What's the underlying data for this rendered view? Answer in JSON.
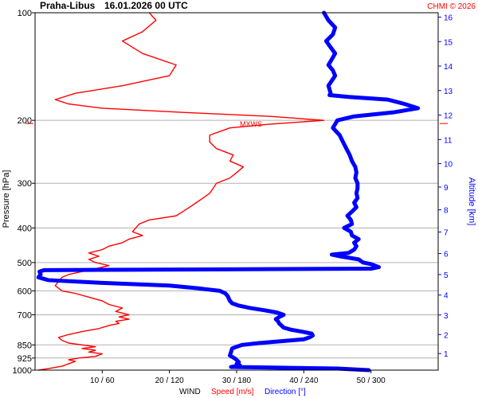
{
  "header": {
    "station": "Praha-Libus",
    "datetime": "16.01.2026 00 UTC",
    "copyright": "CHMI © 2026"
  },
  "axes": {
    "pressure_label": "Pressure [hPa]",
    "altitude_label": "Altitude [km]",
    "bottom_label_wind": "WIND",
    "bottom_label_speed": "Speed [m/s]",
    "bottom_label_direction": "Direction [°]"
  },
  "colors": {
    "speed": "#ff0000",
    "direction": "#0000ff",
    "grid": "#b0b0b0",
    "frame": "#000000"
  },
  "annotation": {
    "label": "MXWS",
    "pressure": 200
  },
  "chart_data": {
    "type": "line",
    "pressure_ticks": [
      100,
      200,
      300,
      400,
      500,
      600,
      700,
      850,
      925,
      1000
    ],
    "pressure_range": [
      1000,
      100
    ],
    "pressure_scale": "log",
    "altitude_ticks_km": [
      1,
      2,
      3,
      4,
      5,
      6,
      7,
      8,
      9,
      10,
      11,
      12,
      13,
      14,
      15,
      16
    ],
    "x_tick_labels": [
      "10 / 60",
      "20 / 120",
      "30 / 180",
      "40 / 240",
      "50 / 300"
    ],
    "speed_range_ms": [
      0,
      60
    ],
    "direction_range_deg": [
      0,
      360
    ],
    "grid": true,
    "series": [
      {
        "name": "Speed [m/s]",
        "unit": "m/s",
        "points": [
          [
            1000,
            0.5
          ],
          [
            990,
            2
          ],
          [
            975,
            4
          ],
          [
            960,
            5
          ],
          [
            945,
            6
          ],
          [
            935,
            5
          ],
          [
            925,
            6.5
          ],
          [
            915,
            9
          ],
          [
            900,
            10
          ],
          [
            890,
            8
          ],
          [
            880,
            9
          ],
          [
            870,
            7
          ],
          [
            860,
            9
          ],
          [
            850,
            7
          ],
          [
            840,
            5
          ],
          [
            825,
            4
          ],
          [
            810,
            3.5
          ],
          [
            795,
            5
          ],
          [
            780,
            7
          ],
          [
            765,
            9.5
          ],
          [
            750,
            11
          ],
          [
            740,
            12.5
          ],
          [
            730,
            12
          ],
          [
            720,
            14
          ],
          [
            710,
            12.5
          ],
          [
            700,
            14
          ],
          [
            685,
            12
          ],
          [
            670,
            13
          ],
          [
            655,
            11
          ],
          [
            640,
            10
          ],
          [
            625,
            8
          ],
          [
            610,
            6
          ],
          [
            600,
            4
          ],
          [
            580,
            3
          ],
          [
            565,
            3.5
          ],
          [
            550,
            4
          ],
          [
            540,
            5
          ],
          [
            530,
            7
          ],
          [
            520,
            9
          ],
          [
            510,
            11
          ],
          [
            500,
            9
          ],
          [
            490,
            8
          ],
          [
            480,
            9.5
          ],
          [
            470,
            8
          ],
          [
            460,
            10
          ],
          [
            450,
            11
          ],
          [
            440,
            13
          ],
          [
            430,
            14
          ],
          [
            420,
            16
          ],
          [
            410,
            14.5
          ],
          [
            400,
            15
          ],
          [
            390,
            15.5
          ],
          [
            380,
            17
          ],
          [
            370,
            21
          ],
          [
            360,
            22
          ],
          [
            350,
            23
          ],
          [
            340,
            24
          ],
          [
            330,
            25
          ],
          [
            320,
            26
          ],
          [
            310,
            26.5
          ],
          [
            300,
            27
          ],
          [
            290,
            29
          ],
          [
            280,
            30
          ],
          [
            270,
            31
          ],
          [
            260,
            29
          ],
          [
            250,
            29.5
          ],
          [
            240,
            27
          ],
          [
            230,
            26
          ],
          [
            220,
            26
          ],
          [
            210,
            29
          ],
          [
            205,
            35
          ],
          [
            200,
            43
          ],
          [
            195,
            35
          ],
          [
            190,
            22
          ],
          [
            185,
            10
          ],
          [
            180,
            5
          ],
          [
            175,
            3
          ],
          [
            168,
            6
          ],
          [
            160,
            13
          ],
          [
            150,
            20
          ],
          [
            140,
            21
          ],
          [
            130,
            16
          ],
          [
            120,
            13
          ],
          [
            113,
            16
          ],
          [
            105,
            18
          ],
          [
            100,
            17
          ]
        ]
      },
      {
        "name": "Direction [°]",
        "unit": "deg",
        "points": [
          [
            1000,
            298
          ],
          [
            990,
            270
          ],
          [
            980,
            175
          ],
          [
            970,
            183
          ],
          [
            960,
            180
          ],
          [
            950,
            182
          ],
          [
            930,
            179
          ],
          [
            910,
            174
          ],
          [
            890,
            175
          ],
          [
            870,
            176
          ],
          [
            860,
            180
          ],
          [
            850,
            185
          ],
          [
            840,
            200
          ],
          [
            830,
            220
          ],
          [
            820,
            240
          ],
          [
            810,
            245
          ],
          [
            800,
            248
          ],
          [
            790,
            247
          ],
          [
            780,
            238
          ],
          [
            770,
            228
          ],
          [
            760,
            222
          ],
          [
            750,
            220
          ],
          [
            740,
            218
          ],
          [
            730,
            217
          ],
          [
            720,
            215
          ],
          [
            710,
            218
          ],
          [
            700,
            222
          ],
          [
            690,
            216
          ],
          [
            680,
            205
          ],
          [
            670,
            192
          ],
          [
            660,
            182
          ],
          [
            650,
            176
          ],
          [
            640,
            174
          ],
          [
            630,
            173
          ],
          [
            620,
            172
          ],
          [
            610,
            170
          ],
          [
            600,
            165
          ],
          [
            590,
            145
          ],
          [
            580,
            120
          ],
          [
            570,
            60
          ],
          [
            560,
            12
          ],
          [
            550,
            3
          ],
          [
            540,
            5
          ],
          [
            530,
            4
          ],
          [
            525,
            8
          ],
          [
            520,
            300
          ],
          [
            515,
            307
          ],
          [
            505,
            300
          ],
          [
            500,
            293
          ],
          [
            490,
            289
          ],
          [
            480,
            272
          ],
          [
            475,
            265
          ],
          [
            470,
            280
          ],
          [
            460,
            285
          ],
          [
            450,
            287
          ],
          [
            440,
            285
          ],
          [
            430,
            289
          ],
          [
            420,
            283
          ],
          [
            410,
            282
          ],
          [
            400,
            276
          ],
          [
            390,
            283
          ],
          [
            380,
            282
          ],
          [
            370,
            279
          ],
          [
            360,
            283
          ],
          [
            350,
            287
          ],
          [
            340,
            285
          ],
          [
            330,
            288
          ],
          [
            320,
            287
          ],
          [
            310,
            288
          ],
          [
            300,
            288
          ],
          [
            290,
            286
          ],
          [
            280,
            287
          ],
          [
            270,
            286
          ],
          [
            260,
            283
          ],
          [
            250,
            281
          ],
          [
            240,
            278
          ],
          [
            230,
            275
          ],
          [
            220,
            272
          ],
          [
            210,
            266
          ],
          [
            205,
            268
          ],
          [
            200,
            270
          ],
          [
            195,
            285
          ],
          [
            190,
            320
          ],
          [
            185,
            342
          ],
          [
            180,
            330
          ],
          [
            175,
            315
          ],
          [
            172,
            280
          ],
          [
            170,
            263
          ],
          [
            168,
            264
          ],
          [
            160,
            262
          ],
          [
            155,
            265
          ],
          [
            150,
            268
          ],
          [
            145,
            266
          ],
          [
            140,
            262
          ],
          [
            135,
            265
          ],
          [
            130,
            268
          ],
          [
            125,
            264
          ],
          [
            120,
            260
          ],
          [
            115,
            266
          ],
          [
            110,
            268
          ],
          [
            105,
            262
          ],
          [
            100,
            258
          ]
        ]
      }
    ]
  }
}
